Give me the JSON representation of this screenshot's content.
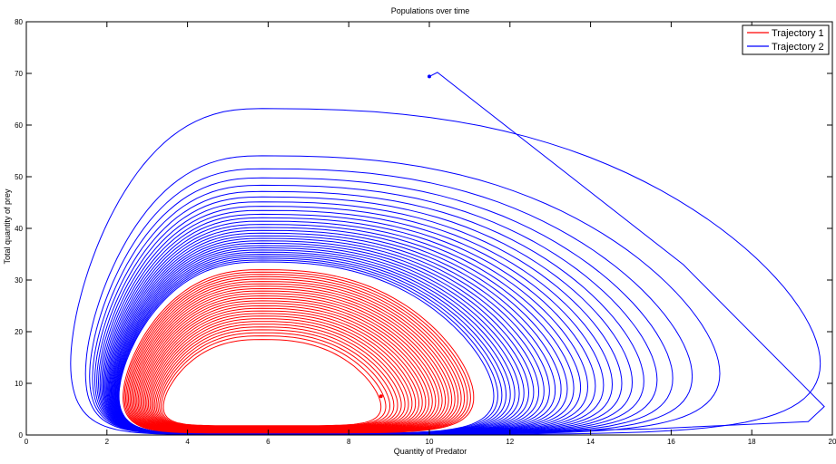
{
  "chart_data": {
    "type": "line",
    "title": "Populations over time",
    "xlabel": "Quantity of Predator",
    "ylabel": "Total quantity of prey",
    "xlim": [
      0,
      20
    ],
    "ylim": [
      0,
      80
    ],
    "x_ticks": [
      "0",
      "2",
      "4",
      "6",
      "8",
      "10",
      "12",
      "14",
      "16",
      "18",
      "20"
    ],
    "y_ticks": [
      "0",
      "10",
      "20",
      "30",
      "40",
      "50",
      "60",
      "70",
      "80"
    ],
    "grid": false,
    "legend_position": "top-right",
    "colors": {
      "Trajectory 1": "#ff0000",
      "Trajectory 2": "#0000ff",
      "axis": "#000000",
      "background": "#ffffff"
    },
    "series": [
      {
        "name": "Trajectory 1",
        "color": "#ff0000",
        "start": [
          8.8,
          7.5
        ],
        "spiral": "outward",
        "loops_approx": 28,
        "loop_extent": {
          "x_min": [
            3.4,
            2.4
          ],
          "x_max": [
            8.8,
            11.1
          ],
          "y_min": [
            1.8,
            0.4
          ],
          "y_max": [
            18.5,
            32.0
          ]
        }
      },
      {
        "name": "Trajectory 2",
        "color": "#0000ff",
        "start": [
          10.0,
          69.4
        ],
        "spiral": "inward",
        "loops_approx": 30,
        "loop_extent": {
          "x_min": [
            1.1,
            2.3
          ],
          "x_max": [
            19.7,
            11.6
          ],
          "y_min": [
            0.1,
            0.3
          ],
          "y_max": [
            63.2,
            33.5
          ]
        }
      }
    ]
  }
}
